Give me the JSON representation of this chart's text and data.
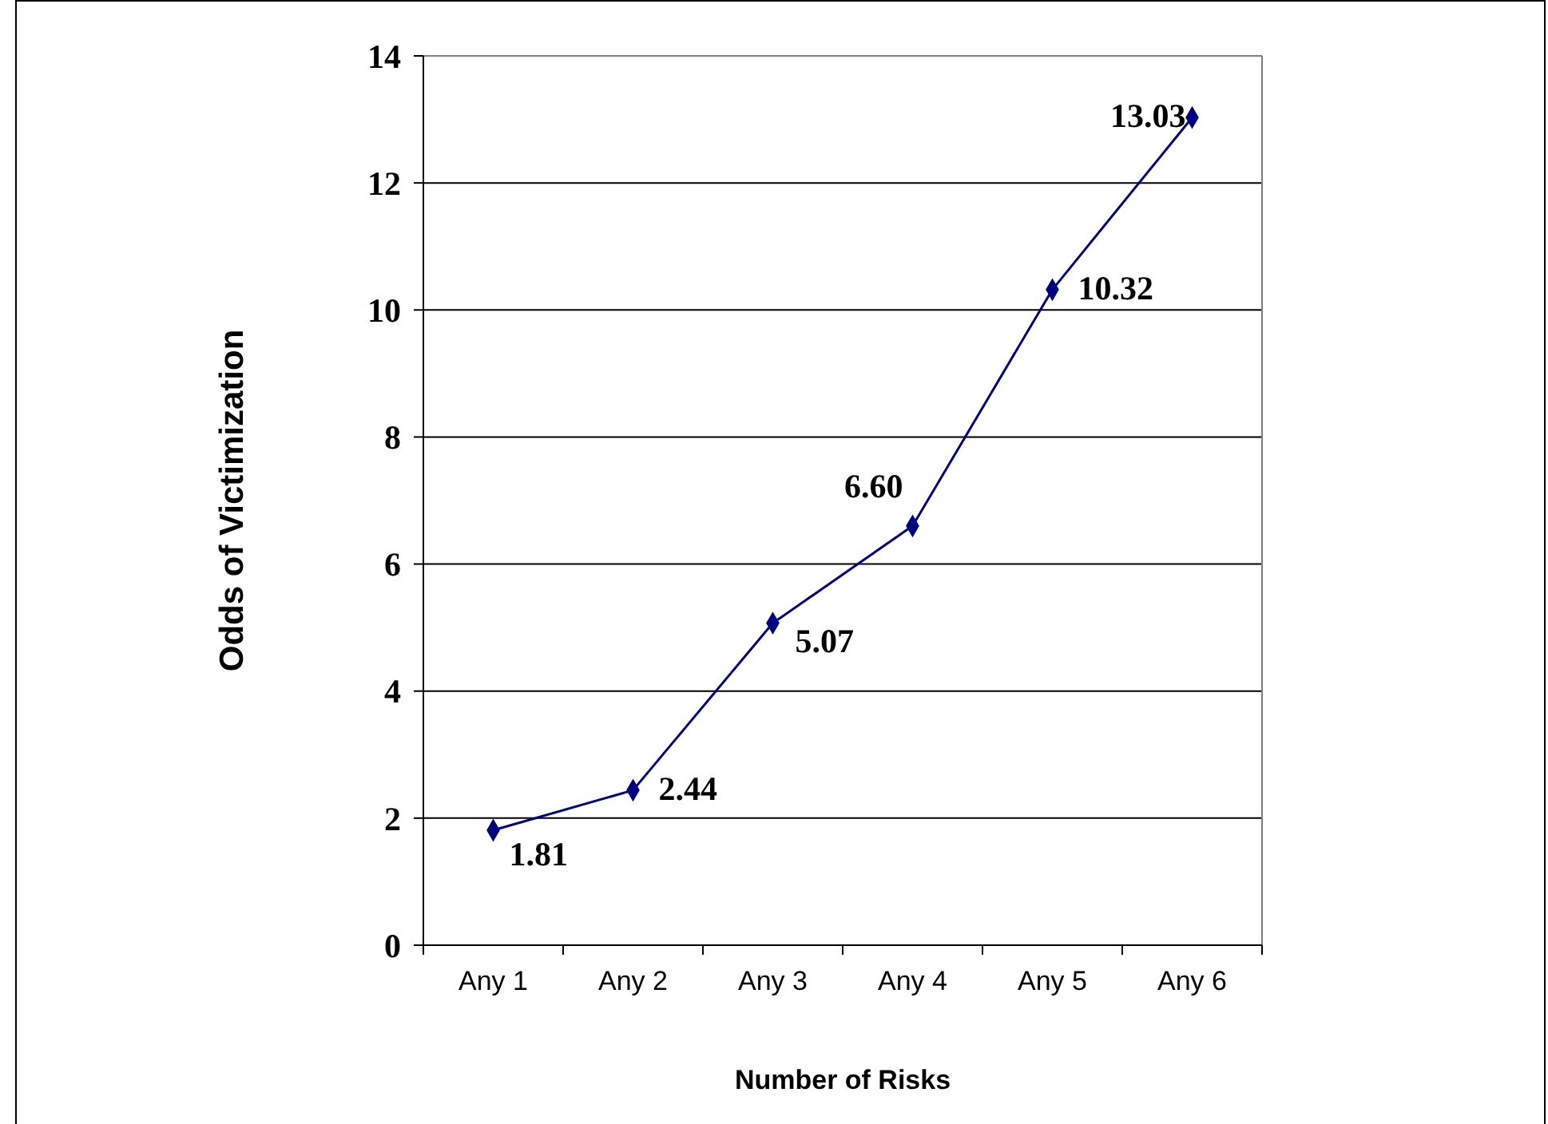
{
  "chart_data": {
    "type": "line",
    "xlabel": "Number of Risks",
    "ylabel": "Odds of Victimization",
    "categories": [
      "Any 1",
      "Any 2",
      "Any 3",
      "Any 4",
      "Any 5",
      "Any 6"
    ],
    "series": [
      {
        "color": "#000080",
        "values": [
          1.81,
          2.44,
          5.07,
          6.6,
          10.32,
          13.03
        ],
        "value_labels": [
          "1.81",
          "2.44",
          "5.07",
          "6.60",
          "10.32",
          "13.03"
        ]
      }
    ],
    "ylim": [
      0,
      14
    ],
    "yticks": [
      0,
      2,
      4,
      6,
      8,
      10,
      12,
      14
    ],
    "grid": "y",
    "marker": "diamond",
    "line_style": "solid",
    "data_labels": true
  }
}
